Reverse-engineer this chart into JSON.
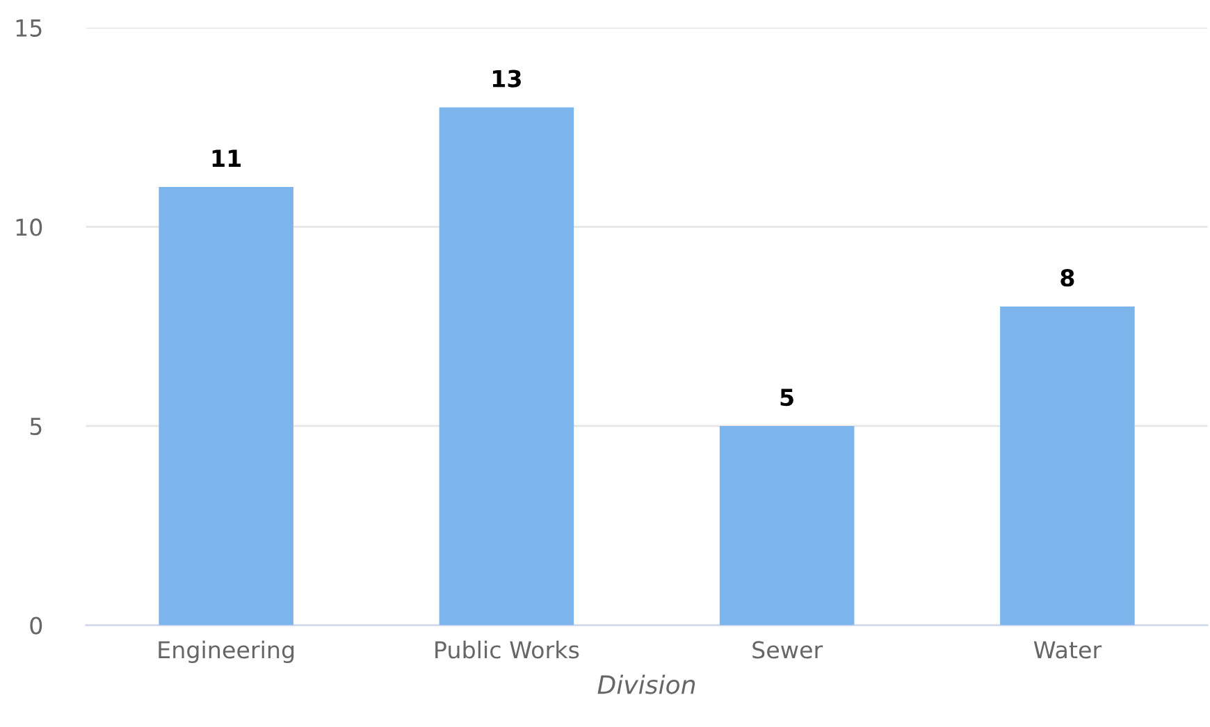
{
  "chart_data": {
    "type": "bar",
    "xlabel": "Division",
    "categories": [
      "Engineering",
      "Public Works",
      "Sewer",
      "Water"
    ],
    "values": [
      11,
      13,
      5,
      8
    ],
    "color": "#7cb5ec",
    "ylim": [
      0,
      15
    ],
    "yticks": [
      0,
      5,
      10,
      15
    ],
    "grid": "y",
    "data_labels": true
  }
}
